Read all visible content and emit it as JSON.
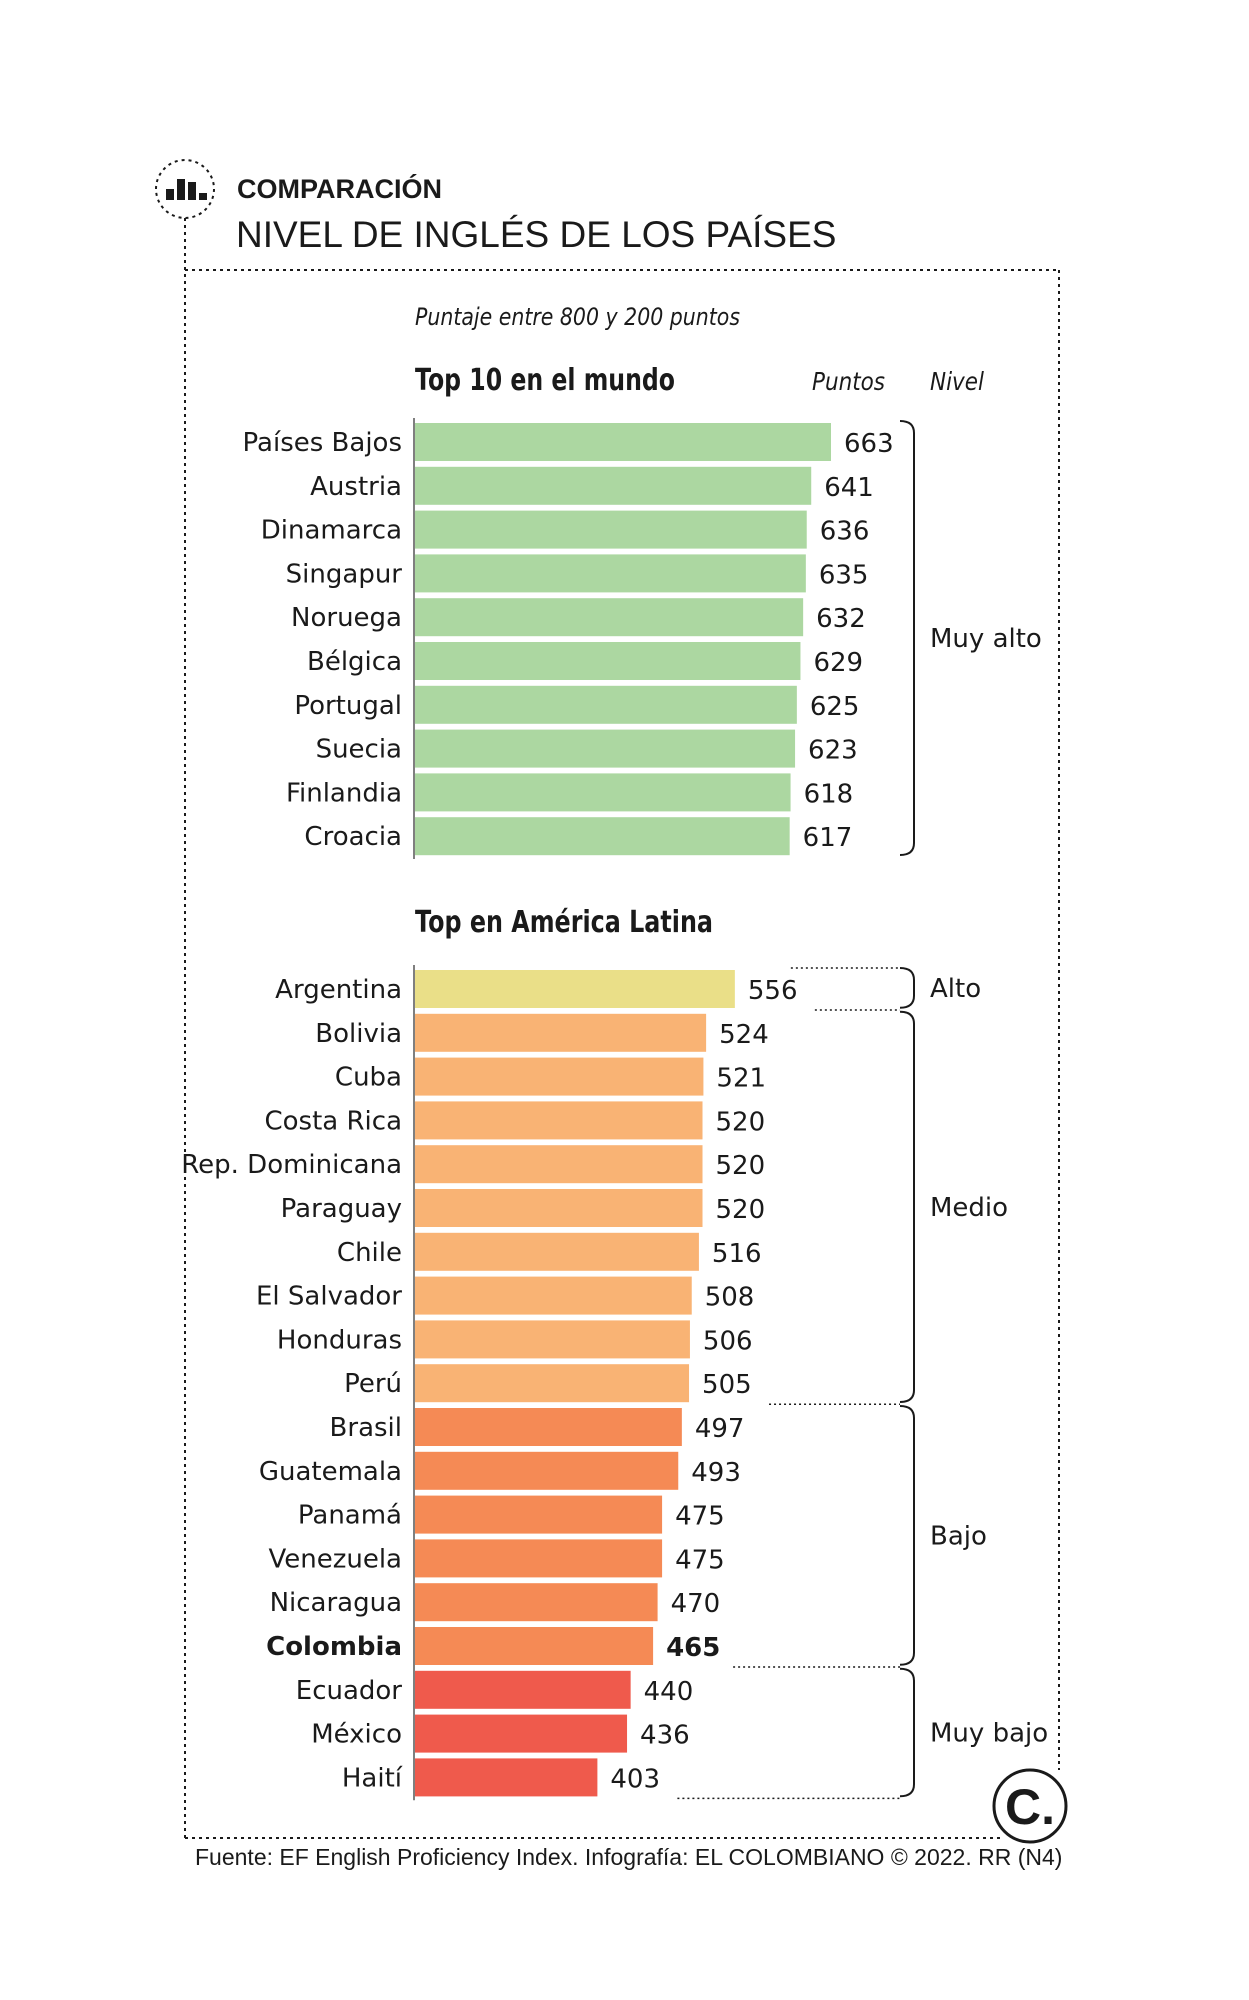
{
  "header": {
    "kicker": "COMPARACIÓN",
    "title": "NIVEL DE INGLÉS DE LOS PAÍSES",
    "icon": "bar-chart-icon"
  },
  "subtitle": "Puntaje entre 800 y 200 puntos",
  "column_headers": {
    "points": "Puntos",
    "level": "Nivel"
  },
  "footer": {
    "source": "Fuente: EF English Proficiency Index. Infografía: EL COLOMBIANO © 2022. RR (N4)",
    "logo_letter": "C."
  },
  "colors": {
    "muy_alto": "#acd7a1",
    "alto": "#eadf88",
    "medio": "#f9b374",
    "bajo": "#f58a55",
    "muy_bajo": "#ef5a4c",
    "text": "#1a1a1a"
  },
  "chart_data": [
    {
      "type": "bar",
      "orientation": "horizontal",
      "title": "Top 10 en el mundo",
      "categories": [
        "Países Bajos",
        "Austria",
        "Dinamarca",
        "Singapur",
        "Noruega",
        "Bélgica",
        "Portugal",
        "Suecia",
        "Finlandia",
        "Croacia"
      ],
      "values": [
        663,
        641,
        636,
        635,
        632,
        629,
        625,
        623,
        618,
        617
      ],
      "levels": [
        "Muy alto",
        "Muy alto",
        "Muy alto",
        "Muy alto",
        "Muy alto",
        "Muy alto",
        "Muy alto",
        "Muy alto",
        "Muy alto",
        "Muy alto"
      ],
      "level_groups": [
        {
          "label": "Muy alto",
          "key": "muy_alto",
          "count": 10
        }
      ],
      "xlabel": "Puntos",
      "ylabel": "",
      "xlim": [
        200,
        800
      ]
    },
    {
      "type": "bar",
      "orientation": "horizontal",
      "title": "Top en América Latina",
      "categories": [
        "Argentina",
        "Bolivia",
        "Cuba",
        "Costa Rica",
        "Rep. Dominicana",
        "Paraguay",
        "Chile",
        "El Salvador",
        "Honduras",
        "Perú",
        "Brasil",
        "Guatemala",
        "Panamá",
        "Venezuela",
        "Nicaragua",
        "Colombia",
        "Ecuador",
        "México",
        "Haití"
      ],
      "values": [
        556,
        524,
        521,
        520,
        520,
        520,
        516,
        508,
        506,
        505,
        497,
        493,
        475,
        475,
        470,
        465,
        440,
        436,
        403
      ],
      "highlight": "Colombia",
      "level_groups": [
        {
          "label": "Alto",
          "key": "alto",
          "count": 1
        },
        {
          "label": "Medio",
          "key": "medio",
          "count": 9
        },
        {
          "label": "Bajo",
          "key": "bajo",
          "count": 6
        },
        {
          "label": "Muy bajo",
          "key": "muy_bajo",
          "count": 3
        }
      ],
      "xlabel": "Puntos",
      "ylabel": "",
      "xlim": [
        200,
        800
      ]
    }
  ]
}
